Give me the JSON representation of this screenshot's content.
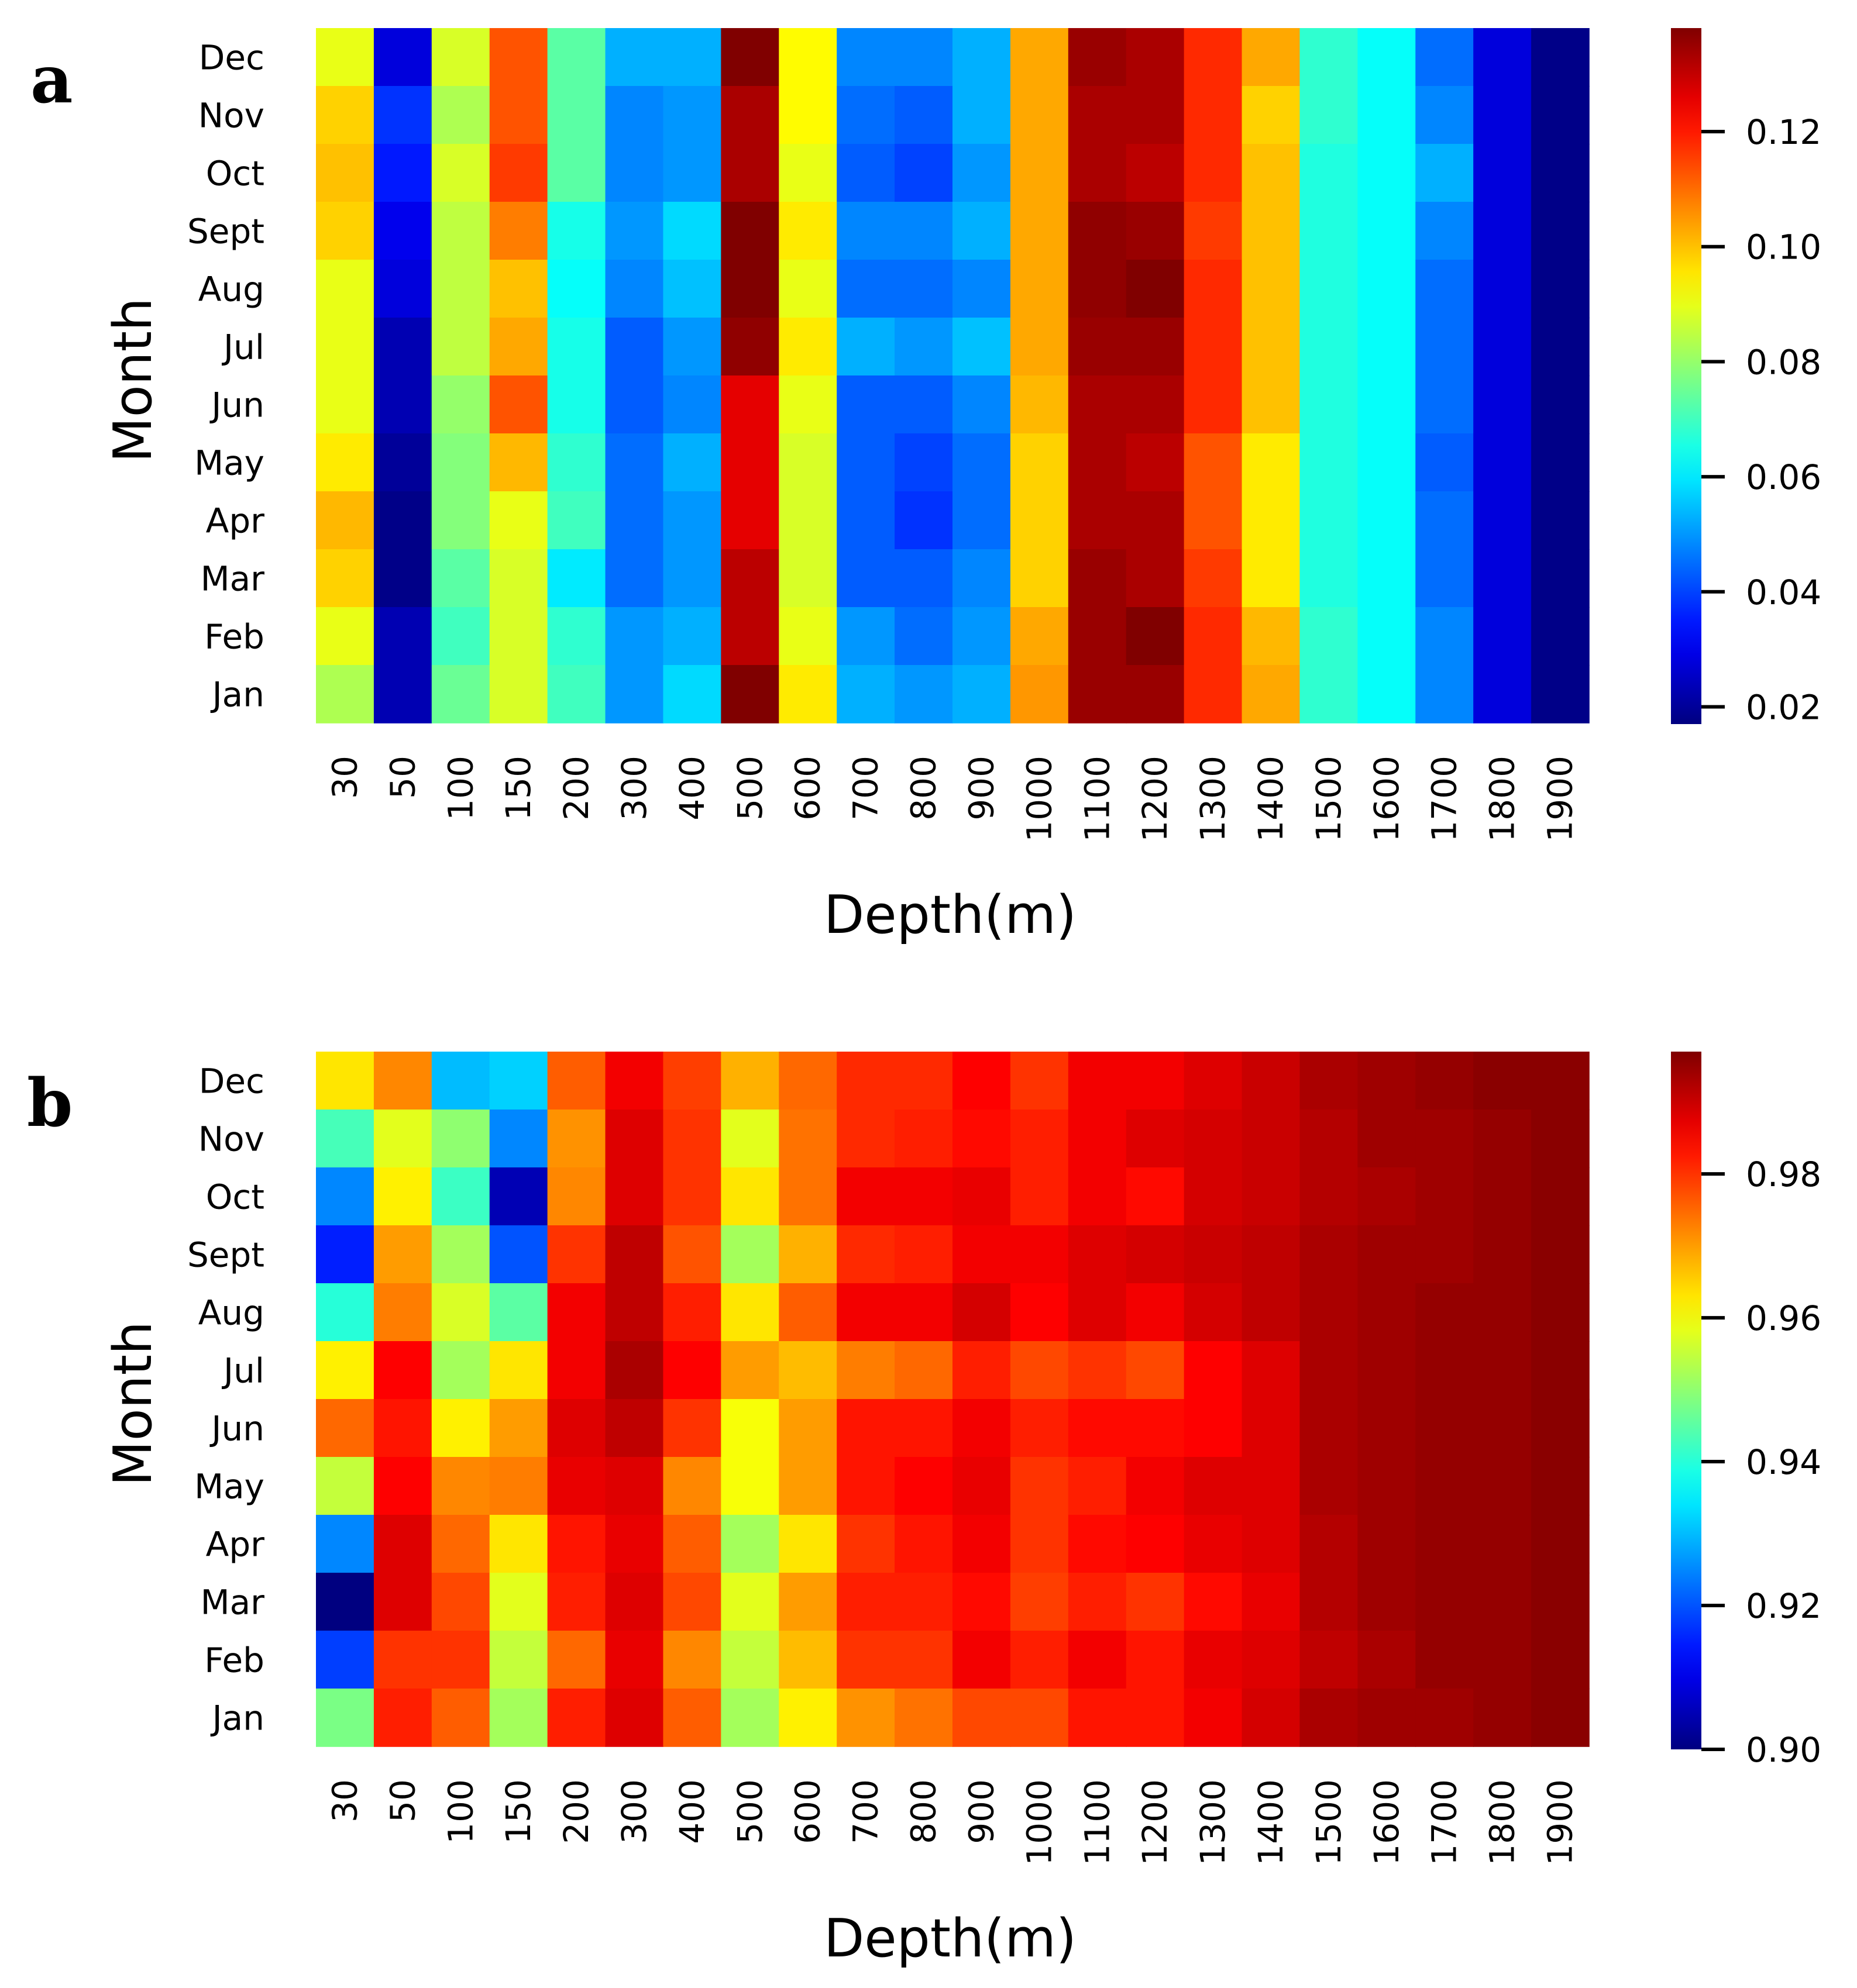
{
  "chart_data": [
    {
      "type": "heatmap",
      "panel_label": "a",
      "xlabel": "Depth(m)",
      "ylabel": "Month",
      "x_categories": [
        "30",
        "50",
        "100",
        "150",
        "200",
        "300",
        "400",
        "500",
        "600",
        "700",
        "800",
        "900",
        "1000",
        "1100",
        "1200",
        "1300",
        "1400",
        "1500",
        "1600",
        "1700",
        "1800",
        "1900"
      ],
      "y_categories": [
        "Dec",
        "Nov",
        "Oct",
        "Sept",
        "Aug",
        "Jul",
        "Jun",
        "May",
        "Apr",
        "Mar",
        "Feb",
        "Jan"
      ],
      "colormap": "jet",
      "vmin": 0.017,
      "vmax": 0.138,
      "colorbar_ticks": [
        "0.02",
        "0.04",
        "0.06",
        "0.08",
        "0.10",
        "0.12"
      ],
      "values": [
        [
          0.09,
          0.028,
          0.088,
          0.113,
          0.073,
          0.053,
          0.053,
          0.138,
          0.093,
          0.048,
          0.048,
          0.053,
          0.103,
          0.135,
          0.133,
          0.118,
          0.103,
          0.068,
          0.063,
          0.045,
          0.028,
          0.018
        ],
        [
          0.098,
          0.038,
          0.083,
          0.113,
          0.073,
          0.048,
          0.05,
          0.133,
          0.093,
          0.045,
          0.043,
          0.053,
          0.103,
          0.133,
          0.133,
          0.118,
          0.098,
          0.068,
          0.063,
          0.048,
          0.028,
          0.018
        ],
        [
          0.1,
          0.035,
          0.088,
          0.116,
          0.073,
          0.048,
          0.05,
          0.133,
          0.09,
          0.043,
          0.04,
          0.05,
          0.103,
          0.133,
          0.131,
          0.118,
          0.1,
          0.066,
          0.063,
          0.053,
          0.028,
          0.018
        ],
        [
          0.098,
          0.03,
          0.085,
          0.108,
          0.065,
          0.05,
          0.058,
          0.138,
          0.095,
          0.048,
          0.048,
          0.053,
          0.103,
          0.136,
          0.135,
          0.116,
          0.1,
          0.066,
          0.063,
          0.048,
          0.028,
          0.018
        ],
        [
          0.09,
          0.028,
          0.085,
          0.1,
          0.063,
          0.048,
          0.055,
          0.138,
          0.09,
          0.045,
          0.045,
          0.048,
          0.103,
          0.136,
          0.138,
          0.118,
          0.1,
          0.066,
          0.063,
          0.045,
          0.028,
          0.018
        ],
        [
          0.09,
          0.023,
          0.085,
          0.103,
          0.065,
          0.043,
          0.05,
          0.136,
          0.095,
          0.053,
          0.05,
          0.055,
          0.103,
          0.135,
          0.135,
          0.118,
          0.1,
          0.066,
          0.063,
          0.045,
          0.028,
          0.018
        ],
        [
          0.09,
          0.023,
          0.08,
          0.113,
          0.065,
          0.043,
          0.048,
          0.126,
          0.09,
          0.043,
          0.043,
          0.048,
          0.101,
          0.133,
          0.133,
          0.118,
          0.1,
          0.066,
          0.063,
          0.045,
          0.028,
          0.018
        ],
        [
          0.095,
          0.02,
          0.078,
          0.101,
          0.068,
          0.045,
          0.053,
          0.126,
          0.088,
          0.043,
          0.04,
          0.045,
          0.098,
          0.133,
          0.131,
          0.113,
          0.095,
          0.066,
          0.063,
          0.043,
          0.028,
          0.018
        ],
        [
          0.101,
          0.018,
          0.078,
          0.09,
          0.07,
          0.045,
          0.05,
          0.126,
          0.088,
          0.043,
          0.038,
          0.045,
          0.098,
          0.133,
          0.133,
          0.113,
          0.095,
          0.066,
          0.063,
          0.045,
          0.028,
          0.018
        ],
        [
          0.098,
          0.018,
          0.073,
          0.088,
          0.06,
          0.045,
          0.05,
          0.131,
          0.088,
          0.043,
          0.043,
          0.048,
          0.098,
          0.135,
          0.133,
          0.116,
          0.095,
          0.066,
          0.063,
          0.045,
          0.028,
          0.018
        ],
        [
          0.09,
          0.023,
          0.07,
          0.088,
          0.068,
          0.05,
          0.053,
          0.131,
          0.09,
          0.05,
          0.045,
          0.05,
          0.103,
          0.135,
          0.138,
          0.118,
          0.101,
          0.068,
          0.063,
          0.048,
          0.028,
          0.018
        ],
        [
          0.083,
          0.023,
          0.075,
          0.088,
          0.07,
          0.05,
          0.058,
          0.138,
          0.095,
          0.053,
          0.05,
          0.053,
          0.105,
          0.135,
          0.135,
          0.118,
          0.103,
          0.068,
          0.063,
          0.048,
          0.028,
          0.018
        ]
      ]
    },
    {
      "type": "heatmap",
      "panel_label": "b",
      "xlabel": "Depth(m)",
      "ylabel": "Month",
      "x_categories": [
        "30",
        "50",
        "100",
        "150",
        "200",
        "300",
        "400",
        "500",
        "600",
        "700",
        "800",
        "900",
        "1000",
        "1100",
        "1200",
        "1300",
        "1400",
        "1500",
        "1600",
        "1700",
        "1800",
        "1900"
      ],
      "y_categories": [
        "Dec",
        "Nov",
        "Oct",
        "Sept",
        "Aug",
        "Jul",
        "Jun",
        "May",
        "Apr",
        "Mar",
        "Feb",
        "Jan"
      ],
      "colormap": "jet",
      "vmin": 0.9,
      "vmax": 0.997,
      "colorbar_ticks": [
        "0.90",
        "0.92",
        "0.94",
        "0.96",
        "0.98"
      ],
      "values": [
        [
          0.963,
          0.972,
          0.93,
          0.932,
          0.976,
          0.986,
          0.979,
          0.968,
          0.975,
          0.981,
          0.981,
          0.985,
          0.98,
          0.986,
          0.986,
          0.988,
          0.99,
          0.993,
          0.994,
          0.995,
          0.996,
          0.996
        ],
        [
          0.943,
          0.958,
          0.95,
          0.925,
          0.971,
          0.988,
          0.98,
          0.958,
          0.974,
          0.981,
          0.982,
          0.984,
          0.982,
          0.986,
          0.988,
          0.989,
          0.99,
          0.992,
          0.994,
          0.994,
          0.995,
          0.996
        ],
        [
          0.925,
          0.962,
          0.942,
          0.905,
          0.972,
          0.988,
          0.98,
          0.963,
          0.974,
          0.986,
          0.986,
          0.987,
          0.982,
          0.986,
          0.984,
          0.989,
          0.99,
          0.992,
          0.993,
          0.994,
          0.995,
          0.996
        ],
        [
          0.915,
          0.97,
          0.952,
          0.92,
          0.98,
          0.991,
          0.977,
          0.952,
          0.968,
          0.981,
          0.982,
          0.986,
          0.986,
          0.988,
          0.989,
          0.99,
          0.991,
          0.993,
          0.994,
          0.994,
          0.995,
          0.996
        ],
        [
          0.94,
          0.973,
          0.957,
          0.945,
          0.986,
          0.991,
          0.982,
          0.963,
          0.976,
          0.986,
          0.986,
          0.989,
          0.985,
          0.988,
          0.986,
          0.989,
          0.991,
          0.993,
          0.994,
          0.995,
          0.995,
          0.996
        ],
        [
          0.962,
          0.985,
          0.952,
          0.963,
          0.986,
          0.993,
          0.985,
          0.97,
          0.967,
          0.973,
          0.975,
          0.982,
          0.978,
          0.98,
          0.978,
          0.985,
          0.988,
          0.993,
          0.994,
          0.995,
          0.995,
          0.996
        ],
        [
          0.975,
          0.983,
          0.962,
          0.97,
          0.988,
          0.991,
          0.98,
          0.96,
          0.97,
          0.983,
          0.983,
          0.986,
          0.982,
          0.984,
          0.984,
          0.985,
          0.988,
          0.993,
          0.994,
          0.995,
          0.995,
          0.996
        ],
        [
          0.955,
          0.985,
          0.972,
          0.973,
          0.987,
          0.988,
          0.972,
          0.96,
          0.97,
          0.983,
          0.985,
          0.987,
          0.98,
          0.982,
          0.986,
          0.988,
          0.988,
          0.993,
          0.994,
          0.995,
          0.995,
          0.996
        ],
        [
          0.925,
          0.988,
          0.975,
          0.963,
          0.983,
          0.987,
          0.976,
          0.952,
          0.963,
          0.98,
          0.983,
          0.986,
          0.98,
          0.984,
          0.985,
          0.987,
          0.988,
          0.992,
          0.994,
          0.995,
          0.995,
          0.996
        ],
        [
          0.9,
          0.988,
          0.978,
          0.958,
          0.982,
          0.988,
          0.978,
          0.958,
          0.97,
          0.982,
          0.982,
          0.984,
          0.979,
          0.982,
          0.98,
          0.984,
          0.987,
          0.992,
          0.994,
          0.995,
          0.995,
          0.996
        ],
        [
          0.918,
          0.98,
          0.98,
          0.955,
          0.975,
          0.987,
          0.972,
          0.955,
          0.967,
          0.98,
          0.98,
          0.986,
          0.982,
          0.986,
          0.983,
          0.987,
          0.988,
          0.991,
          0.993,
          0.995,
          0.995,
          0.996
        ],
        [
          0.948,
          0.982,
          0.976,
          0.952,
          0.982,
          0.988,
          0.976,
          0.952,
          0.962,
          0.971,
          0.974,
          0.978,
          0.978,
          0.983,
          0.983,
          0.986,
          0.989,
          0.993,
          0.994,
          0.994,
          0.995,
          0.996
        ]
      ]
    }
  ]
}
